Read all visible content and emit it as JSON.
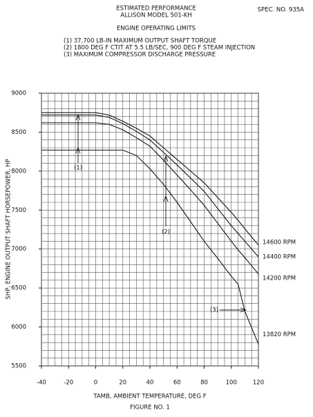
{
  "chart_data": {
    "type": "line",
    "title": [
      "ESTIMATED PERFORMANCE",
      "ALLISON MODEL 501-KH"
    ],
    "spec": "SPEC. NO. 935A",
    "subtitle": "ENGINE OPERATING LIMITS",
    "notes": [
      "(1)  37,700 LB-IN MAXIMUM OUTPUT SHAFT TORQUE",
      "(2)  1800 DEG F CTIT AT 5.5 LB/SEC, 900 DEG F STEAM INJECTION",
      "(3)  MAXIMUM COMPRESSOR DISCHARGE PRESSURE"
    ],
    "annotations": [
      "(1)",
      "(2)",
      "(3)"
    ],
    "x_label": "TAMB, AMBIENT TEMPERATURE, DEG F",
    "y_label": "SHP, ENGINE OUTPUT SHAFT HORSEPOWER, HP",
    "figure": "FIGURE NO. 1",
    "x": [
      -40,
      -20,
      0,
      10,
      20,
      30,
      40,
      50,
      60,
      70,
      80,
      90,
      100,
      105,
      110,
      120
    ],
    "series": [
      {
        "name": "14600 RPM",
        "color": "#111111",
        "values": [
          8750,
          8750,
          8750,
          8720,
          8640,
          8550,
          8450,
          8300,
          8150,
          8000,
          7850,
          7660,
          7470,
          7370,
          7260,
          7050
        ]
      },
      {
        "name": "14400 RPM",
        "color": "#111111",
        "values": [
          8720,
          8720,
          8720,
          8690,
          8610,
          8510,
          8400,
          8240,
          8080,
          7910,
          7740,
          7520,
          7300,
          7200,
          7100,
          6900
        ]
      },
      {
        "name": "14200 RPM",
        "color": "#111111",
        "values": [
          8620,
          8620,
          8620,
          8600,
          8530,
          8430,
          8320,
          8140,
          7950,
          7760,
          7560,
          7330,
          7100,
          6990,
          6890,
          6680
        ]
      },
      {
        "name": "13820 RPM",
        "color": "#111111",
        "values": [
          8270,
          8270,
          8270,
          8270,
          8270,
          8200,
          8030,
          7830,
          7600,
          7350,
          7100,
          6880,
          6650,
          6550,
          6200,
          5780
        ]
      }
    ],
    "xlim": [
      -40,
      120
    ],
    "ylim": [
      5500,
      9000
    ],
    "xticks": [
      -40,
      -20,
      0,
      20,
      40,
      60,
      80,
      100,
      120
    ],
    "yticks": [
      5500,
      6000,
      6500,
      7000,
      7500,
      8000,
      8500,
      9000
    ],
    "xgrid": [
      -40,
      -35,
      -30,
      -25,
      -20,
      -15,
      -10,
      -5,
      0,
      5,
      10,
      15,
      20,
      25,
      30,
      35,
      40,
      45,
      50,
      55,
      60,
      65,
      70,
      75,
      80,
      85,
      90,
      95,
      100,
      105,
      110,
      115,
      120
    ],
    "ygrid": [
      5500,
      5600,
      5700,
      5800,
      5900,
      6000,
      6100,
      6200,
      6300,
      6400,
      6500,
      6600,
      6700,
      6800,
      6900,
      7000,
      7100,
      7200,
      7300,
      7400,
      7500,
      7600,
      7700,
      7800,
      7900,
      8000,
      8100,
      8200,
      8300,
      8400,
      8500,
      8600,
      8700,
      8800,
      8900,
      9000
    ],
    "grid": true
  }
}
